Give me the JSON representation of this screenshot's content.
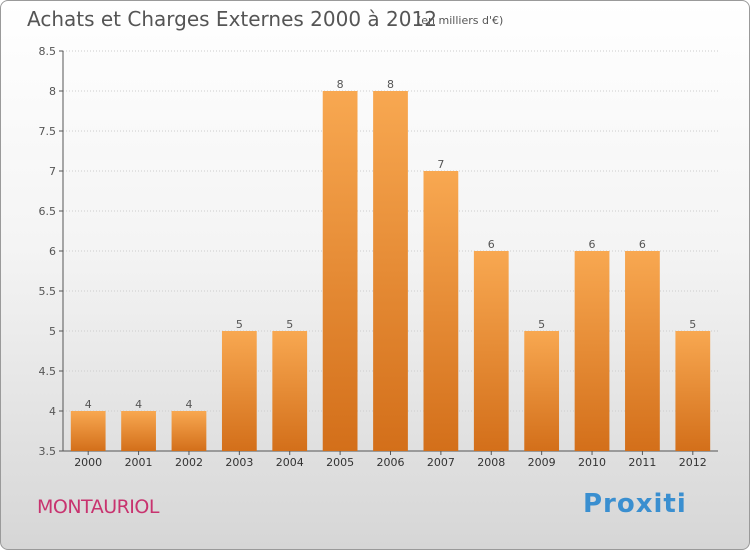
{
  "header": {
    "title": "Achats et Charges Externes 2000 à 2012",
    "unit": "(en milliers d'€)"
  },
  "footer": {
    "place": "MONTAURIOL",
    "brand": "Proxiti"
  },
  "colors": {
    "bar_light": "#f8a851",
    "bar_dark": "#d36f1a",
    "axis": "#555555",
    "grid": "#cccccc",
    "place": "#c8336f"
  },
  "chart_data": {
    "type": "bar",
    "title": "Achats et Charges Externes 2000 à 2012",
    "categories": [
      "2000",
      "2001",
      "2002",
      "2003",
      "2004",
      "2005",
      "2006",
      "2007",
      "2008",
      "2009",
      "2010",
      "2011",
      "2012"
    ],
    "values": [
      4,
      4,
      4,
      5,
      5,
      8,
      8,
      7,
      6,
      5,
      6,
      6,
      5
    ],
    "data_labels": [
      "4",
      "4",
      "4",
      "5",
      "5",
      "8",
      "8",
      "7",
      "6",
      "5",
      "6",
      "6",
      "5"
    ],
    "yticks": [
      "3.5",
      "4",
      "4.5",
      "5",
      "5.5",
      "6",
      "6.5",
      "7",
      "7.5",
      "8",
      "8.5"
    ],
    "ylim": [
      3.5,
      8.5
    ],
    "grid": true,
    "xlabel": "",
    "ylabel": ""
  }
}
